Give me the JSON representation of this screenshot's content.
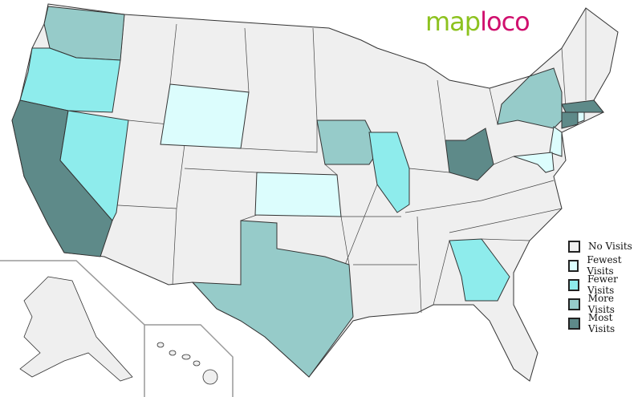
{
  "logo": {
    "part1": "map",
    "part2": "loco"
  },
  "colors": {
    "none": "#efefef",
    "fewest": "#dcfdfd",
    "fewer": "#8eecec",
    "more": "#96cbc9",
    "most": "#5e8a89"
  },
  "legend": [
    {
      "label": "No Visits",
      "level": "none"
    },
    {
      "label": "Fewest Visits",
      "level": "fewest"
    },
    {
      "label": "Fewer Visits",
      "level": "fewer"
    },
    {
      "label": "More Visits",
      "level": "more"
    },
    {
      "label": "Most Visits",
      "level": "most"
    }
  ],
  "states": {
    "Washington": "more",
    "Oregon": "fewer",
    "California": "most",
    "Nevada": "fewer",
    "Wyoming": "fewest",
    "Kansas": "fewest",
    "Texas": "more",
    "Iowa": "more",
    "Illinois": "fewer",
    "Ohio": "most",
    "Georgia": "fewer",
    "New York": "more",
    "New Jersey": "fewest",
    "Massachusetts": "most",
    "Connecticut": "most",
    "Rhode Island": "fewest",
    "Maryland": "fewest",
    "Delaware": "fewest"
  }
}
